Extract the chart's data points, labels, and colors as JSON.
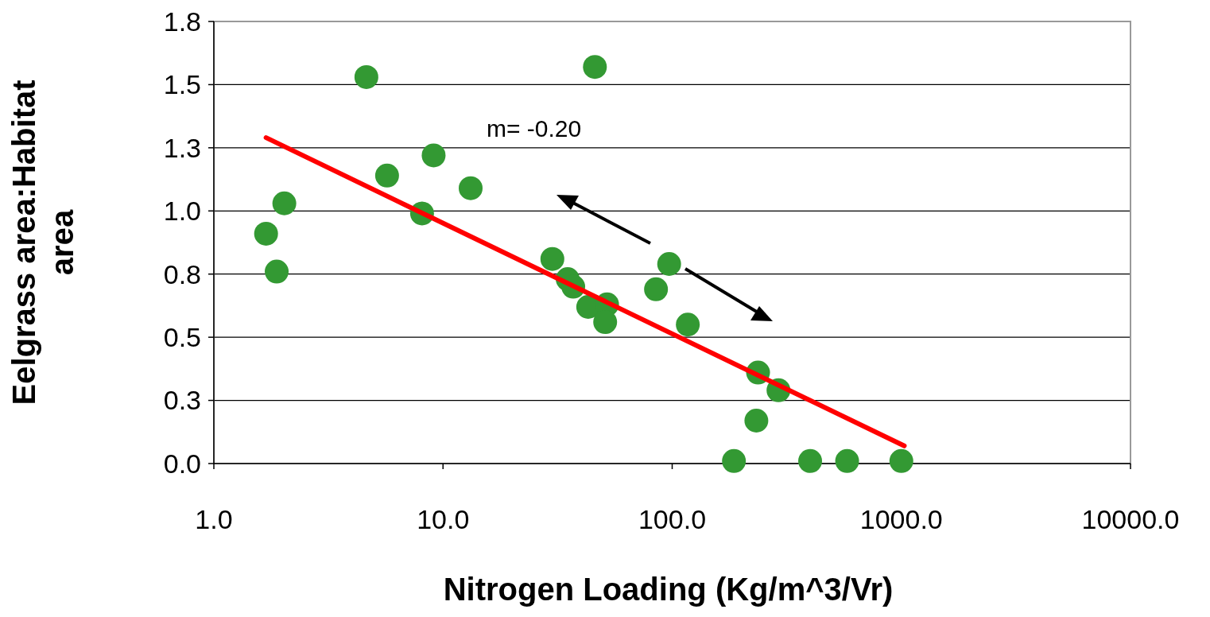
{
  "chart_data": {
    "type": "scatter",
    "xlabel": "Nitrogen Loading (Kg/m^3/Vr)",
    "ylabel": "Eelgrass area:Habitat area",
    "log": "x",
    "xlim": [
      1,
      10000
    ],
    "xticks": [
      {
        "value": 1,
        "label": "1.0"
      },
      {
        "value": 10,
        "label": "10.0"
      },
      {
        "value": 100,
        "label": "100.0"
      },
      {
        "value": 1000,
        "label": "1000.0"
      },
      {
        "value": 10000,
        "label": "10000.0"
      }
    ],
    "ylim": [
      0,
      1.75
    ],
    "yticks": [
      {
        "value": 0,
        "label": "0.0"
      },
      {
        "value": 0.25,
        "label": "0.3"
      },
      {
        "value": 0.5,
        "label": "0.5"
      },
      {
        "value": 0.75,
        "label": "0.8"
      },
      {
        "value": 1,
        "label": "1.0"
      },
      {
        "value": 1.25,
        "label": "1.3"
      },
      {
        "value": 1.5,
        "label": "1.5"
      },
      {
        "value": 1.75,
        "label": "1.8"
      }
    ],
    "grid": "y",
    "marker": "circle",
    "annotations": [
      "m= -0.20"
    ],
    "series": [
      {
        "color": "#339933",
        "x": [
          1.69,
          1.88,
          2.03,
          4.63,
          5.7,
          9.1,
          8.1,
          13.2,
          30,
          35,
          37,
          43,
          52,
          51,
          46,
          85,
          97,
          117,
          237,
          291,
          233,
          186,
          400,
          580,
          1000
        ],
        "values": [
          0.91,
          0.76,
          1.03,
          1.53,
          1.14,
          1.22,
          0.99,
          1.09,
          0.81,
          0.73,
          0.7,
          0.62,
          0.63,
          0.56,
          1.57,
          0.69,
          0.79,
          0.55,
          0.36,
          0.29,
          0.17,
          0.01,
          0.01,
          0.01,
          0.01
        ]
      },
      {
        "type": "line",
        "color": "#ff0000",
        "marker": "none",
        "x": [
          1.69,
          1030
        ],
        "values": [
          1.29,
          0.07
        ]
      }
    ]
  }
}
